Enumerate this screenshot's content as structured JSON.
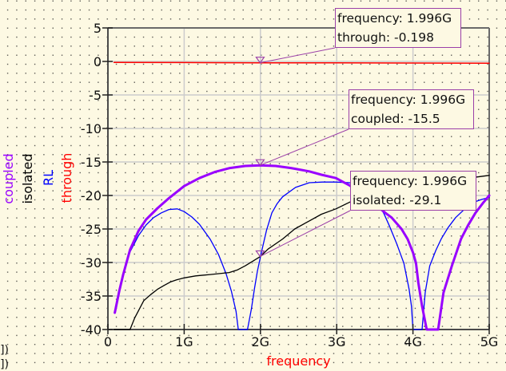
{
  "chart_data": {
    "type": "line",
    "title": "",
    "xlabel": "frequency",
    "ylabel": "",
    "xlim": [
      0,
      5
    ],
    "ylim": [
      -40,
      5
    ],
    "x_unit": "GHz",
    "grid": true,
    "legend_position": "left-vertical",
    "x_ticks": [
      {
        "value": 0,
        "label": "0"
      },
      {
        "value": 1,
        "label": "1G"
      },
      {
        "value": 2,
        "label": "2G"
      },
      {
        "value": 3,
        "label": "3G"
      },
      {
        "value": 4,
        "label": "4G"
      },
      {
        "value": 5,
        "label": "5G"
      }
    ],
    "y_ticks": [
      {
        "value": 5,
        "label": "5"
      },
      {
        "value": 0,
        "label": "0"
      },
      {
        "value": -5,
        "label": "-5"
      },
      {
        "value": -10,
        "label": "-10"
      },
      {
        "value": -15,
        "label": "-15"
      },
      {
        "value": -20,
        "label": "-20"
      },
      {
        "value": -25,
        "label": "-25"
      },
      {
        "value": -30,
        "label": "-30"
      },
      {
        "value": -35,
        "label": "-35"
      },
      {
        "value": -40,
        "label": "-40"
      }
    ],
    "legend": [
      {
        "label": "coupled",
        "color": "#9900ff"
      },
      {
        "label": "isolated",
        "color": "#000000"
      },
      {
        "label": "RL",
        "color": "#0000ff"
      },
      {
        "label": "through",
        "color": "#ff0000"
      }
    ],
    "series": [
      {
        "name": "RL",
        "color": "#0000ff",
        "width": 1.3,
        "points": [
          [
            0.09,
            -37.5
          ],
          [
            0.15,
            -34.2
          ],
          [
            0.2,
            -31.9
          ],
          [
            0.29,
            -28.4
          ],
          [
            0.4,
            -26.0
          ],
          [
            0.5,
            -24.4
          ],
          [
            0.6,
            -23.3
          ],
          [
            0.7,
            -22.6
          ],
          [
            0.8,
            -22.1
          ],
          [
            0.91,
            -22.0
          ],
          [
            1.0,
            -22.4
          ],
          [
            1.1,
            -23.2
          ],
          [
            1.2,
            -24.3
          ],
          [
            1.34,
            -26.5
          ],
          [
            1.45,
            -28.8
          ],
          [
            1.55,
            -31.7
          ],
          [
            1.62,
            -34.3
          ],
          [
            1.68,
            -37.3
          ],
          [
            1.71,
            -40
          ],
          [
            1.83,
            -40
          ],
          [
            1.88,
            -37.0
          ],
          [
            1.92,
            -34.0
          ],
          [
            1.96,
            -31.3
          ],
          [
            2.01,
            -28.6
          ],
          [
            2.08,
            -25.2
          ],
          [
            2.15,
            -22.6
          ],
          [
            2.22,
            -21.2
          ],
          [
            2.29,
            -20.2
          ],
          [
            2.46,
            -18.8
          ],
          [
            2.64,
            -18.1
          ],
          [
            2.81,
            -18.0
          ],
          [
            2.99,
            -18.0
          ],
          [
            3.17,
            -18.1
          ],
          [
            3.3,
            -19.0
          ],
          [
            3.45,
            -20.0
          ],
          [
            3.55,
            -21.4
          ],
          [
            3.62,
            -22.7
          ],
          [
            3.69,
            -24.5
          ],
          [
            3.79,
            -27.3
          ],
          [
            3.88,
            -30.1
          ],
          [
            3.95,
            -34.0
          ],
          [
            3.98,
            -36.5
          ],
          [
            4.0,
            -40
          ],
          [
            4.12,
            -40
          ],
          [
            4.16,
            -34.5
          ],
          [
            4.22,
            -30.5
          ],
          [
            4.3,
            -28.2
          ],
          [
            4.37,
            -26.5
          ],
          [
            4.46,
            -24.8
          ],
          [
            4.56,
            -23.3
          ],
          [
            4.68,
            -22.0
          ],
          [
            4.8,
            -21.0
          ],
          [
            4.9,
            -20.6
          ],
          [
            5.0,
            -20.3
          ]
        ]
      },
      {
        "name": "isolated",
        "color": "#000000",
        "width": 1.3,
        "points": [
          [
            0.08,
            -40
          ],
          [
            0.29,
            -40
          ],
          [
            0.35,
            -38.3
          ],
          [
            0.41,
            -37.0
          ],
          [
            0.47,
            -35.7
          ],
          [
            0.56,
            -34.8
          ],
          [
            0.65,
            -34.0
          ],
          [
            0.74,
            -33.4
          ],
          [
            0.82,
            -32.9
          ],
          [
            0.9,
            -32.6
          ],
          [
            1.0,
            -32.3
          ],
          [
            1.15,
            -32.0
          ],
          [
            1.34,
            -31.8
          ],
          [
            1.59,
            -31.5
          ],
          [
            1.7,
            -31.1
          ],
          [
            1.8,
            -30.5
          ],
          [
            1.9,
            -29.8
          ],
          [
            2.0,
            -29.1
          ],
          [
            2.1,
            -28.0
          ],
          [
            2.29,
            -26.5
          ],
          [
            2.45,
            -25.0
          ],
          [
            2.64,
            -23.8
          ],
          [
            2.8,
            -22.8
          ],
          [
            2.99,
            -22.0
          ],
          [
            3.17,
            -21.0
          ],
          [
            3.35,
            -20.3
          ],
          [
            3.55,
            -19.6
          ],
          [
            3.75,
            -19.0
          ],
          [
            3.95,
            -18.5
          ],
          [
            4.15,
            -18.1
          ],
          [
            4.35,
            -17.8
          ],
          [
            4.6,
            -17.5
          ],
          [
            4.8,
            -17.3
          ],
          [
            5.0,
            -17.0
          ]
        ]
      },
      {
        "name": "through",
        "color": "#ff0000",
        "width": 1.5,
        "points": [
          [
            0.08,
            -0.15
          ],
          [
            1.0,
            -0.17
          ],
          [
            2.0,
            -0.198
          ],
          [
            3.0,
            -0.22
          ],
          [
            4.0,
            -0.24
          ],
          [
            5.0,
            -0.26
          ]
        ]
      },
      {
        "name": "coupled",
        "color": "#9900ff",
        "width": 3,
        "points": [
          [
            0.09,
            -37.5
          ],
          [
            0.15,
            -34.2
          ],
          [
            0.2,
            -31.8
          ],
          [
            0.29,
            -28.1
          ],
          [
            0.4,
            -25.3
          ],
          [
            0.5,
            -23.6
          ],
          [
            0.65,
            -21.9
          ],
          [
            0.8,
            -20.4
          ],
          [
            1.0,
            -18.6
          ],
          [
            1.2,
            -17.4
          ],
          [
            1.4,
            -16.5
          ],
          [
            1.6,
            -15.9
          ],
          [
            1.8,
            -15.6
          ],
          [
            2.0,
            -15.5
          ],
          [
            2.2,
            -15.6
          ],
          [
            2.4,
            -15.9
          ],
          [
            2.64,
            -16.4
          ],
          [
            2.8,
            -16.9
          ],
          [
            2.99,
            -17.4
          ],
          [
            3.17,
            -18.5
          ],
          [
            3.4,
            -20.4
          ],
          [
            3.55,
            -21.8
          ],
          [
            3.65,
            -22.7
          ],
          [
            3.72,
            -23.3
          ],
          [
            3.85,
            -25.0
          ],
          [
            3.93,
            -26.5
          ],
          [
            4.0,
            -28.5
          ],
          [
            4.04,
            -30.1
          ],
          [
            4.07,
            -33.0
          ],
          [
            4.12,
            -36.5
          ],
          [
            4.18,
            -40
          ],
          [
            4.33,
            -40
          ],
          [
            4.4,
            -34.5
          ],
          [
            4.51,
            -30.5
          ],
          [
            4.63,
            -26.5
          ],
          [
            4.72,
            -24.5
          ],
          [
            4.82,
            -22.6
          ],
          [
            4.92,
            -21.1
          ],
          [
            5.0,
            -20.0
          ]
        ]
      }
    ],
    "markers": [
      {
        "series": "through",
        "x": 1.996,
        "y": -0.198,
        "lines": [
          "frequency: 1.996G",
          "through: -0.198"
        ]
      },
      {
        "series": "coupled",
        "x": 1.996,
        "y": -15.5,
        "lines": [
          "frequency: 1.996G",
          "coupled: -15.5"
        ]
      },
      {
        "series": "isolated",
        "x": 1.996,
        "y": -29.1,
        "lines": [
          "frequency: 1.996G",
          "isolated: -29.1"
        ]
      }
    ]
  },
  "clipped_text": [
    "])",
    "])"
  ],
  "colors": {
    "background": "#fdf9e3",
    "grid": "#cccccc",
    "marker": "#9b3fa8",
    "axis_title": "#ff0000"
  }
}
